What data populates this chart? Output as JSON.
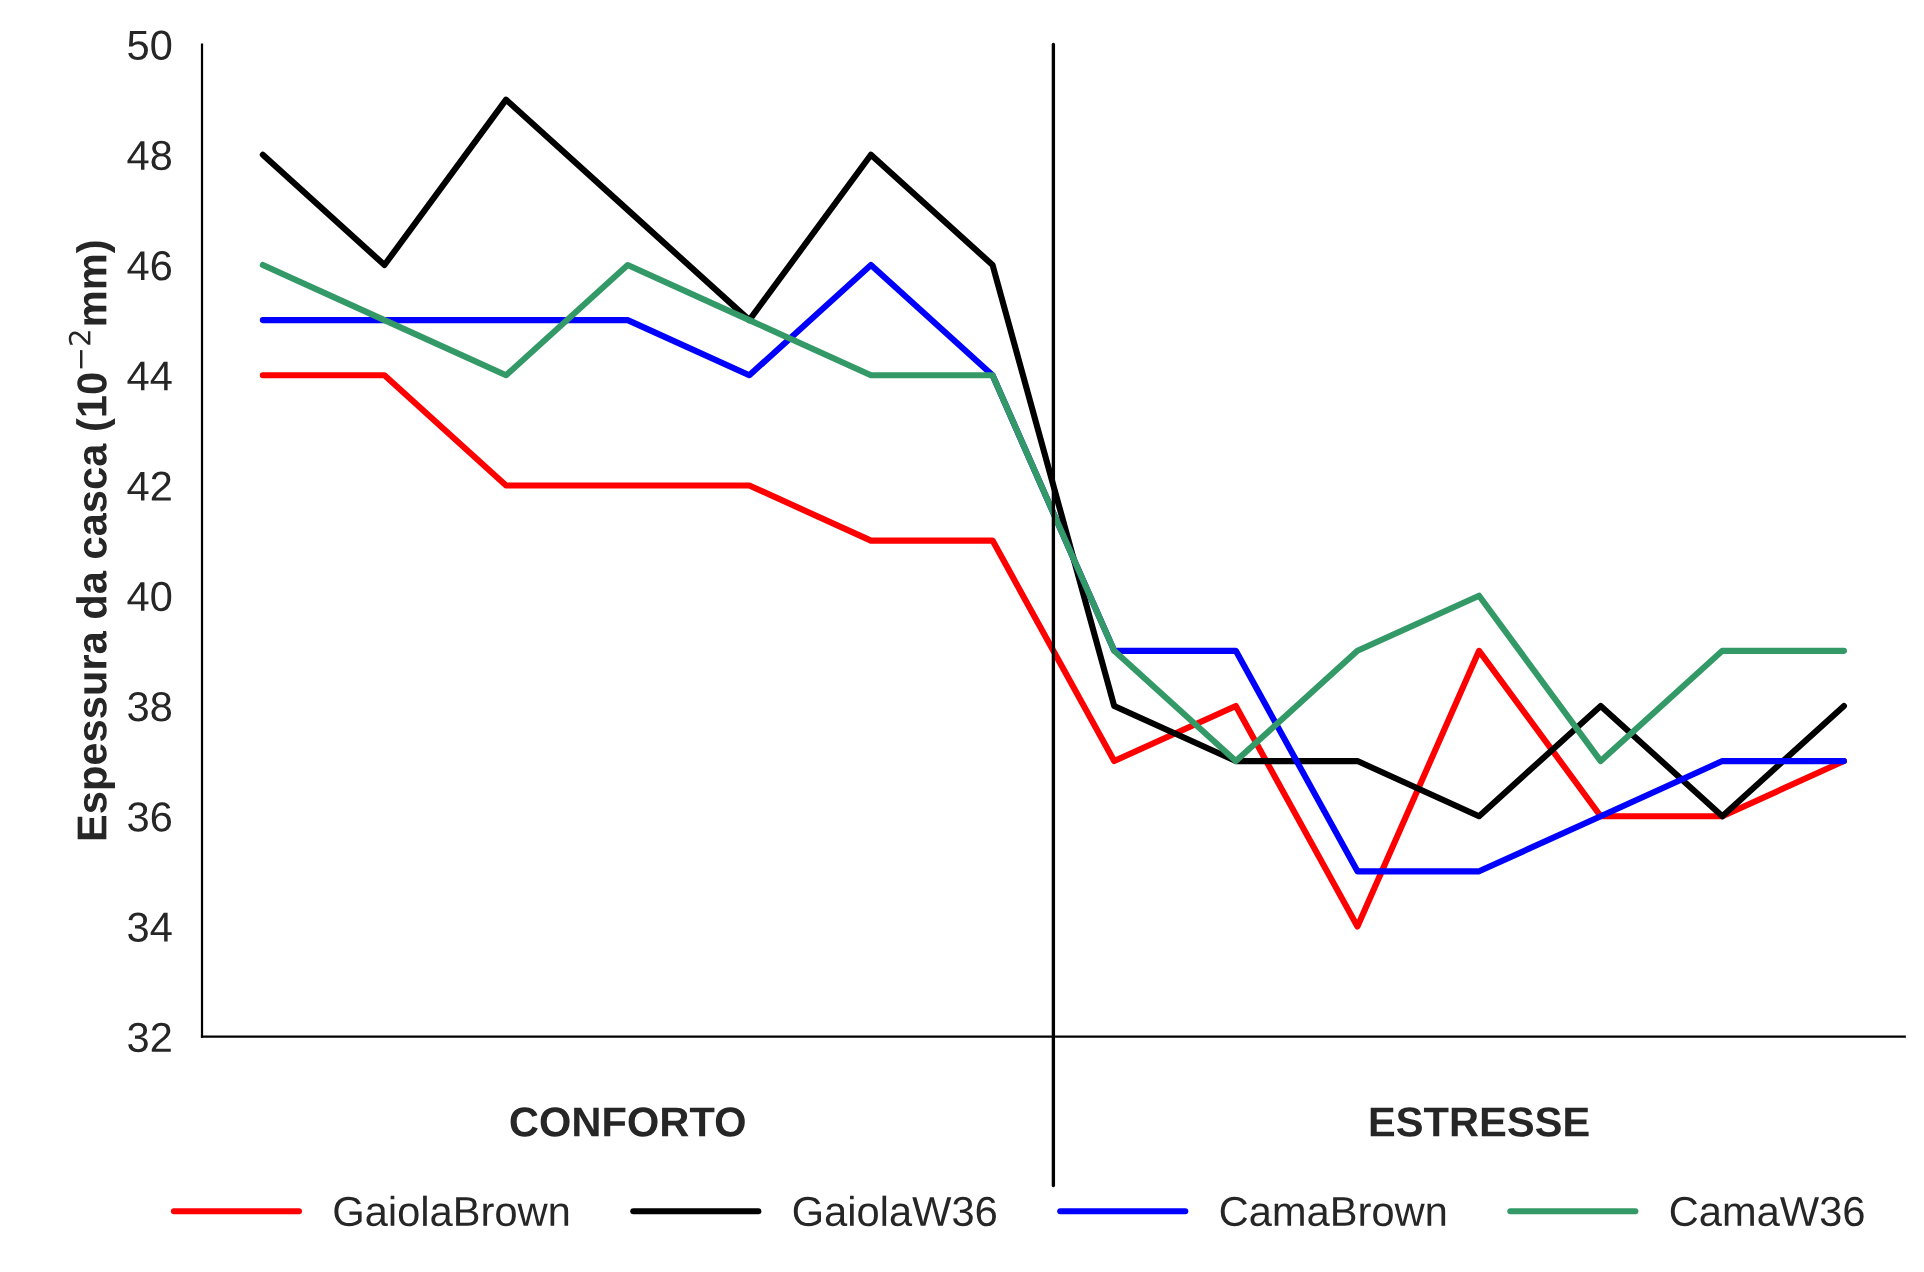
{
  "chart_data": {
    "type": "line",
    "ylabel": "Espessura da casca (10$^{−2}$mm)",
    "categories": [
      null,
      null,
      null,
      null,
      null,
      null,
      null,
      null,
      null,
      null,
      null,
      null,
      null,
      null
    ],
    "ylim": [
      32,
      50
    ],
    "yticks": [
      32,
      34,
      36,
      38,
      40,
      42,
      44,
      46,
      48,
      50
    ],
    "series": [
      {
        "name": "GaiolaBrown",
        "color": "#ff0000",
        "values": [
          44,
          44,
          42,
          42,
          42,
          41,
          41,
          37,
          38,
          34,
          39,
          36,
          36,
          37
        ]
      },
      {
        "name": "GaiolaW36",
        "color": "#000000",
        "values": [
          48,
          46,
          49,
          47,
          45,
          48,
          46,
          38,
          37,
          37,
          36,
          38,
          36,
          38
        ]
      },
      {
        "name": "CamaBrown",
        "color": "#0000ff",
        "values": [
          45,
          45,
          45,
          45,
          44,
          46,
          44,
          39,
          39,
          35,
          35,
          36,
          37,
          37
        ]
      },
      {
        "name": "CamaW36",
        "color": "#339966",
        "values": [
          46,
          45,
          44,
          46,
          45,
          44,
          44,
          39,
          37,
          39,
          40,
          37,
          39,
          39
        ]
      }
    ],
    "annotations": [
      "CONFORTO",
      "ESTRESSE"
    ],
    "tick_labels": "y",
    "grid": false,
    "legend": "bottom",
    "marker": "none",
    "line_style": "solid"
  }
}
